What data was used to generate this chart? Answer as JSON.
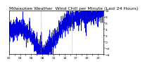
{
  "title": "Milwaukee Weather  Wind Chill per Minute (Last 24 Hours)",
  "line_color": "#0000dd",
  "background_color": "#ffffff",
  "plot_bg_color": "#ffffff",
  "grid_color": "#888888",
  "ylim": [
    -4,
    10
  ],
  "yticks": [
    -4,
    -2,
    0,
    2,
    4,
    6,
    8,
    10
  ],
  "num_points": 1440,
  "title_fontsize": 4.5,
  "tick_fontsize": 3.2,
  "linewidth": 0.4
}
